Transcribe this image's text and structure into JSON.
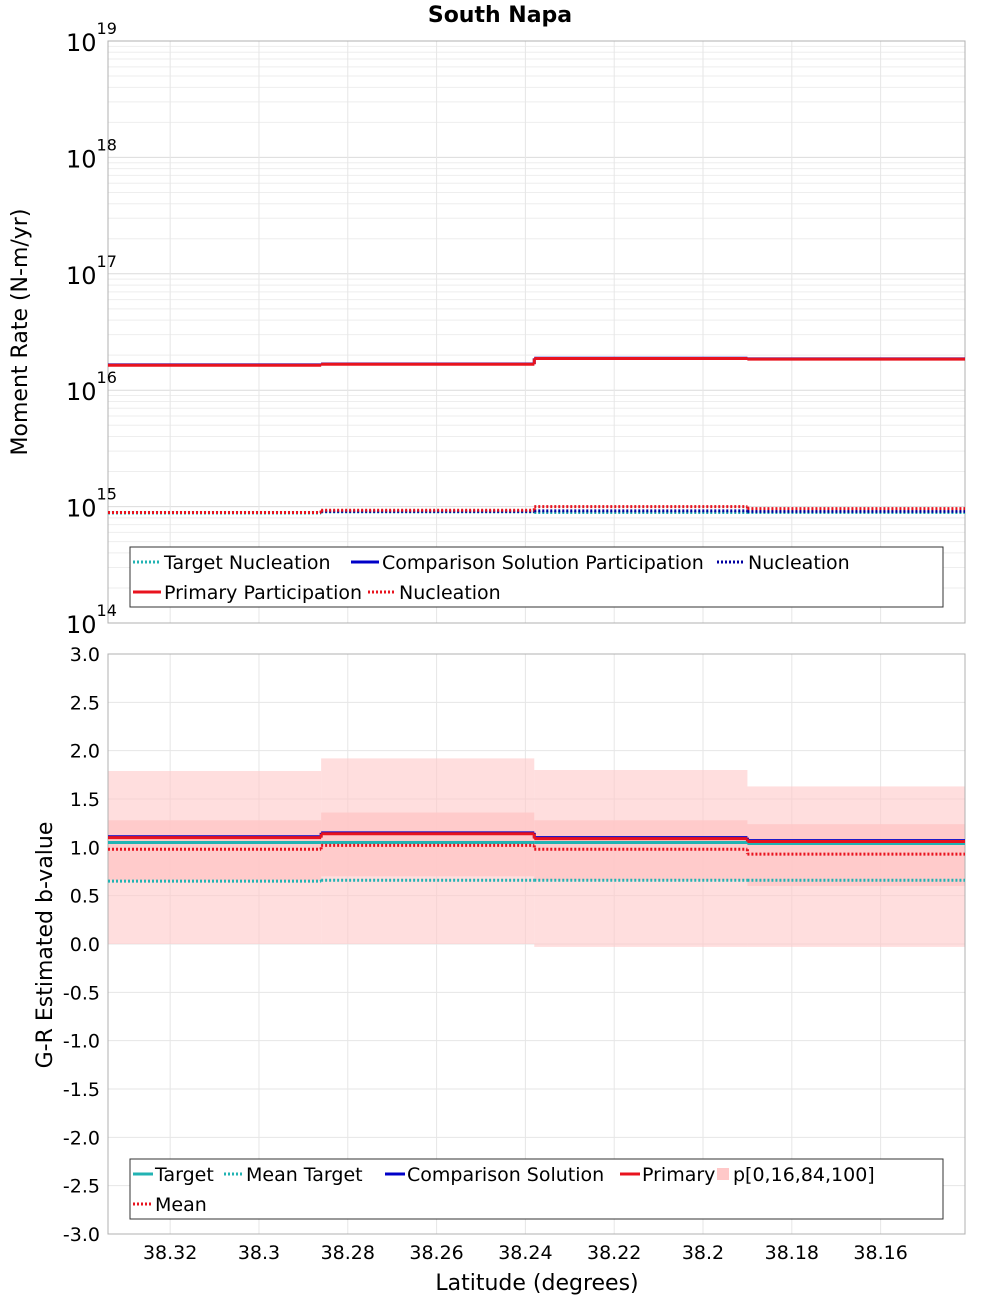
{
  "chart_data": [
    {
      "type": "line",
      "title": "South Napa",
      "ylabel": "Moment Rate (N-m/yr)",
      "xlabel": "",
      "yscale": "log",
      "ylim": [
        100000000000000.0,
        1e+19
      ],
      "y_tick_labels": [
        {
          "base": "10",
          "exp": "14",
          "value": 100000000000000.0
        },
        {
          "base": "10",
          "exp": "15",
          "value": 1000000000000000.0
        },
        {
          "base": "10",
          "exp": "16",
          "value": 1e+16
        },
        {
          "base": "10",
          "exp": "17",
          "value": 1e+17
        },
        {
          "base": "10",
          "exp": "18",
          "value": 1e+18
        },
        {
          "base": "10",
          "exp": "19",
          "value": 1e+19
        }
      ],
      "xlim": [
        38.334,
        38.141
      ],
      "x_breaks": [
        38.334,
        38.286,
        38.238,
        38.19,
        38.141
      ],
      "series": [
        {
          "name": "Target Nucleation",
          "color": "#22b3b3",
          "style": "dotted",
          "values": [
            880000000000000.0,
            900000000000000.0,
            890000000000000.0,
            890000000000000.0
          ]
        },
        {
          "name": "Comparison Solution Participation",
          "color": "#0000c8",
          "style": "solid",
          "values": [
            1.65e+16,
            1.68e+16,
            1.88e+16,
            1.86e+16
          ]
        },
        {
          "name": "Nucleation",
          "color": "#0000a0",
          "style": "dotted",
          "values": [
            890000000000000.0,
            910000000000000.0,
            920000000000000.0,
            910000000000000.0
          ]
        },
        {
          "name": "Primary Participation",
          "color": "#e8131e",
          "style": "solid",
          "values": [
            1.64e+16,
            1.67e+16,
            1.87e+16,
            1.85e+16
          ]
        },
        {
          "name": "Nucleation",
          "color": "#e8131e",
          "style": "dotted",
          "values": [
            890000000000000.0,
            930000000000000.0,
            1000000000000000.0,
            960000000000000.0
          ]
        }
      ],
      "legend_position": "bottom"
    },
    {
      "type": "line",
      "title": "",
      "ylabel": "G-R Estimated b-value",
      "xlabel": "Latitude (degrees)",
      "ylim": [
        -3.0,
        3.0
      ],
      "y_ticks": [
        -3.0,
        -2.5,
        -2.0,
        -1.5,
        -1.0,
        -0.5,
        0.0,
        0.5,
        1.0,
        1.5,
        2.0,
        2.5,
        3.0
      ],
      "y_tick_labels": [
        "-3.0",
        "-2.5",
        "-2.0",
        "-1.5",
        "-1.0",
        "-0.5",
        "0.0",
        "0.5",
        "1.0",
        "1.5",
        "2.0",
        "2.5",
        "3.0"
      ],
      "xlim": [
        38.334,
        38.141
      ],
      "x_ticks": [
        38.32,
        38.3,
        38.28,
        38.26,
        38.24,
        38.22,
        38.2,
        38.18,
        38.16
      ],
      "x_tick_labels": [
        "38.32",
        "38.3",
        "38.28",
        "38.26",
        "38.24",
        "38.22",
        "38.2",
        "38.18",
        "38.16"
      ],
      "x_breaks": [
        38.334,
        38.286,
        38.238,
        38.19,
        38.141
      ],
      "series": [
        {
          "name": "Target",
          "color": "#22b3b3",
          "style": "solid",
          "values": [
            1.05,
            1.05,
            1.05,
            1.04
          ]
        },
        {
          "name": "Mean Target",
          "color": "#22b3b3",
          "style": "dotted",
          "values": [
            0.65,
            0.66,
            0.66,
            0.66
          ]
        },
        {
          "name": "Comparison Solution",
          "color": "#0000c8",
          "style": "solid",
          "values": [
            1.11,
            1.15,
            1.1,
            1.07
          ]
        },
        {
          "name": "Primary",
          "color": "#e8131e",
          "style": "solid",
          "values": [
            1.1,
            1.14,
            1.09,
            1.06
          ]
        },
        {
          "name": "Mean",
          "color": "#e8131e",
          "style": "dotted",
          "values": [
            0.98,
            1.02,
            0.98,
            0.93
          ]
        }
      ],
      "bands": {
        "name": "p[0,16,84,100]",
        "color": "#ffc8c8",
        "p0": [
          0.0,
          0.0,
          -0.03,
          -0.03
        ],
        "p16": [
          0.66,
          0.7,
          0.66,
          0.6
        ],
        "p84": [
          1.28,
          1.36,
          1.28,
          1.24
        ],
        "p100": [
          1.79,
          1.92,
          1.8,
          1.63
        ]
      },
      "legend_position": "bottom"
    }
  ]
}
